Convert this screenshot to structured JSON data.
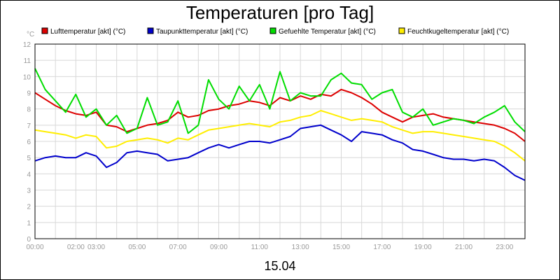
{
  "chart_data": {
    "type": "line",
    "title": "Temperaturen [pro Tag]",
    "xlabel": "15.04",
    "ylabel": "°C",
    "ylim": [
      0,
      12
    ],
    "xlim_hours": [
      0,
      24
    ],
    "yticks": [
      "0",
      "1",
      "2",
      "3",
      "4",
      "5",
      "6",
      "7",
      "8",
      "9",
      "10",
      "11",
      "12"
    ],
    "xticks": [
      {
        "h": 0,
        "label": "00:00"
      },
      {
        "h": 2,
        "label": "02:00"
      },
      {
        "h": 3,
        "label": "03:00"
      },
      {
        "h": 5,
        "label": "05:00"
      },
      {
        "h": 7,
        "label": "07:00"
      },
      {
        "h": 9,
        "label": "09:00"
      },
      {
        "h": 11,
        "label": "11:00"
      },
      {
        "h": 13,
        "label": "13:00"
      },
      {
        "h": 15,
        "label": "15:00"
      },
      {
        "h": 17,
        "label": "17:00"
      },
      {
        "h": 19,
        "label": "19:00"
      },
      {
        "h": 21,
        "label": "21:00"
      },
      {
        "h": 23,
        "label": "23:00"
      }
    ],
    "grid": true,
    "legend_position": "top",
    "series": [
      {
        "name": "Lufttemperatur [akt] (°C)",
        "color": "#dd0000",
        "x": [
          0,
          0.5,
          1,
          1.5,
          2,
          2.5,
          3,
          3.5,
          4,
          4.5,
          5,
          5.5,
          6,
          6.5,
          7,
          7.5,
          8,
          8.5,
          9,
          9.5,
          10,
          10.5,
          11,
          11.5,
          12,
          12.5,
          13,
          13.5,
          14,
          14.5,
          15,
          15.5,
          16,
          16.5,
          17,
          17.5,
          18,
          18.5,
          19,
          19.5,
          20,
          20.5,
          21,
          21.5,
          22,
          22.5,
          23,
          23.5,
          24
        ],
        "values": [
          9.0,
          8.6,
          8.2,
          7.9,
          7.7,
          7.6,
          7.8,
          7.0,
          6.9,
          6.6,
          6.8,
          7.0,
          7.1,
          7.3,
          7.8,
          7.5,
          7.6,
          7.9,
          8.0,
          8.2,
          8.3,
          8.5,
          8.4,
          8.2,
          8.7,
          8.5,
          8.8,
          8.6,
          8.9,
          8.8,
          9.2,
          9.0,
          8.7,
          8.3,
          7.8,
          7.5,
          7.2,
          7.5,
          7.6,
          7.7,
          7.5,
          7.4,
          7.3,
          7.2,
          7.1,
          7.0,
          6.8,
          6.5,
          6.0
        ]
      },
      {
        "name": "Taupunkttemperatur [akt] (°C)",
        "color": "#0000cc",
        "x": [
          0,
          0.5,
          1,
          1.5,
          2,
          2.5,
          3,
          3.5,
          4,
          4.5,
          5,
          5.5,
          6,
          6.5,
          7,
          7.5,
          8,
          8.5,
          9,
          9.5,
          10,
          10.5,
          11,
          11.5,
          12,
          12.5,
          13,
          13.5,
          14,
          14.5,
          15,
          15.5,
          16,
          16.5,
          17,
          17.5,
          18,
          18.5,
          19,
          19.5,
          20,
          20.5,
          21,
          21.5,
          22,
          22.5,
          23,
          23.5,
          24
        ],
        "values": [
          4.8,
          5.0,
          5.1,
          5.0,
          5.0,
          5.3,
          5.1,
          4.4,
          4.7,
          5.3,
          5.4,
          5.3,
          5.2,
          4.8,
          4.9,
          5.0,
          5.3,
          5.6,
          5.8,
          5.6,
          5.8,
          6.0,
          6.0,
          5.9,
          6.1,
          6.3,
          6.8,
          6.9,
          7.0,
          6.7,
          6.4,
          6.0,
          6.6,
          6.5,
          6.4,
          6.1,
          5.9,
          5.5,
          5.4,
          5.2,
          5.0,
          4.9,
          4.9,
          4.8,
          4.9,
          4.8,
          4.4,
          3.9,
          3.6
        ]
      },
      {
        "name": "Gefuehlte Temperatur [akt] (°C)",
        "color": "#00dd00",
        "x": [
          0,
          0.5,
          1,
          1.5,
          2,
          2.5,
          3,
          3.5,
          4,
          4.5,
          5,
          5.5,
          6,
          6.5,
          7,
          7.5,
          8,
          8.5,
          9,
          9.5,
          10,
          10.5,
          11,
          11.5,
          12,
          12.5,
          13,
          13.5,
          14,
          14.5,
          15,
          15.5,
          16,
          16.5,
          17,
          17.5,
          18,
          18.5,
          19,
          19.5,
          20,
          20.5,
          21,
          21.5,
          22,
          22.5,
          23,
          23.5,
          24
        ],
        "values": [
          10.5,
          9.2,
          8.5,
          7.8,
          8.9,
          7.5,
          8.0,
          7.0,
          7.6,
          6.5,
          6.8,
          8.7,
          7.0,
          7.2,
          8.5,
          6.5,
          7.0,
          9.8,
          8.6,
          8.0,
          9.4,
          8.5,
          9.5,
          8.0,
          10.3,
          8.5,
          9.0,
          8.8,
          8.8,
          9.8,
          10.2,
          9.6,
          9.5,
          8.6,
          9.0,
          9.2,
          7.8,
          7.5,
          8.0,
          7.0,
          7.2,
          7.4,
          7.3,
          7.1,
          7.5,
          7.8,
          8.2,
          7.2,
          6.6
        ]
      },
      {
        "name": "Feuchtkugeltemperatur [akt] (°C)",
        "color": "#ffee00",
        "x": [
          0,
          0.5,
          1,
          1.5,
          2,
          2.5,
          3,
          3.5,
          4,
          4.5,
          5,
          5.5,
          6,
          6.5,
          7,
          7.5,
          8,
          8.5,
          9,
          9.5,
          10,
          10.5,
          11,
          11.5,
          12,
          12.5,
          13,
          13.5,
          14,
          14.5,
          15,
          15.5,
          16,
          16.5,
          17,
          17.5,
          18,
          18.5,
          19,
          19.5,
          20,
          20.5,
          21,
          21.5,
          22,
          22.5,
          23,
          23.5,
          24
        ],
        "values": [
          6.7,
          6.6,
          6.5,
          6.4,
          6.2,
          6.4,
          6.3,
          5.6,
          5.7,
          6.0,
          6.1,
          6.2,
          6.1,
          5.9,
          6.2,
          6.1,
          6.4,
          6.7,
          6.8,
          6.9,
          7.0,
          7.1,
          7.0,
          6.9,
          7.2,
          7.3,
          7.5,
          7.6,
          7.9,
          7.7,
          7.5,
          7.3,
          7.4,
          7.3,
          7.2,
          6.9,
          6.7,
          6.5,
          6.6,
          6.6,
          6.5,
          6.4,
          6.3,
          6.2,
          6.1,
          6.0,
          5.7,
          5.3,
          4.8
        ]
      }
    ]
  }
}
